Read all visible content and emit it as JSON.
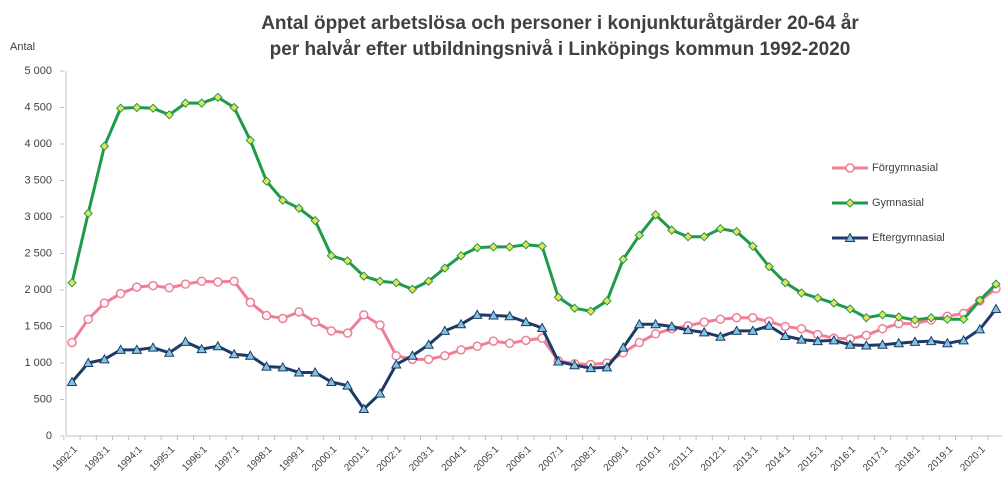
{
  "chart_data": {
    "type": "line",
    "title": [
      "Antal öppet arbetslösa och personer i konjunkturåtgärder 20-64 år",
      "per halvår efter utbildningsnivå i Linköpings kommun 1992-2020"
    ],
    "y_label": "Antal",
    "categories": [
      "1992:1",
      null,
      "1993:1",
      null,
      "1994:1",
      null,
      "1995:1",
      null,
      "1996:1",
      null,
      "1997:1",
      null,
      "1998:1",
      null,
      "1999:1",
      null,
      "2000:1",
      null,
      "2001:1",
      null,
      "2002:1",
      null,
      "2003:1",
      null,
      "2004:1",
      null,
      "2005:1",
      null,
      "2006:1",
      null,
      "2007:1",
      null,
      "2008:1",
      null,
      "2009:1",
      null,
      "2010:1",
      null,
      "2011:1",
      null,
      "2012:1",
      null,
      "2013:1",
      null,
      "2014:1",
      null,
      "2015:1",
      null,
      "2016:1",
      null,
      "2017:1",
      null,
      "2018:1",
      null,
      "2019:1",
      null,
      "2020:1",
      null
    ],
    "series": [
      {
        "name": "Förgymnasial",
        "color": "#ee7f96",
        "marker_fill": "#ffffff",
        "marker": "circle",
        "values": [
          1280,
          1600,
          1820,
          1950,
          2040,
          2060,
          2030,
          2080,
          2120,
          2110,
          2120,
          1830,
          1650,
          1610,
          1700,
          1560,
          1440,
          1410,
          1660,
          1520,
          1100,
          1050,
          1050,
          1100,
          1180,
          1230,
          1300,
          1270,
          1310,
          1340,
          1030,
          990,
          980,
          1000,
          1140,
          1280,
          1400,
          1470,
          1510,
          1560,
          1600,
          1620,
          1620,
          1570,
          1500,
          1470,
          1390,
          1340,
          1330,
          1380,
          1470,
          1540,
          1540,
          1590,
          1640,
          1680,
          1850,
          2020
        ]
      },
      {
        "name": "Gymnasial",
        "color": "#1f9a4a",
        "marker_fill": "#e8e05a",
        "marker": "diamond",
        "values": [
          2100,
          3050,
          3970,
          4490,
          4500,
          4490,
          4400,
          4560,
          4560,
          4640,
          4500,
          4050,
          3490,
          3230,
          3120,
          2950,
          2470,
          2400,
          2190,
          2120,
          2100,
          2010,
          2120,
          2300,
          2470,
          2580,
          2590,
          2590,
          2620,
          2600,
          1900,
          1750,
          1710,
          1850,
          2420,
          2750,
          3030,
          2820,
          2730,
          2730,
          2840,
          2800,
          2600,
          2320,
          2100,
          1960,
          1890,
          1820,
          1740,
          1620,
          1660,
          1630,
          1590,
          1620,
          1600,
          1600,
          1860,
          2080
        ]
      },
      {
        "name": "Eftergymnasial",
        "color": "#1f3a66",
        "marker_fill": "#7fc4e0",
        "marker": "triangle",
        "values": [
          740,
          1000,
          1050,
          1180,
          1180,
          1210,
          1140,
          1290,
          1190,
          1230,
          1120,
          1100,
          950,
          940,
          870,
          870,
          740,
          690,
          370,
          580,
          980,
          1100,
          1250,
          1440,
          1530,
          1660,
          1650,
          1640,
          1560,
          1480,
          1020,
          970,
          930,
          940,
          1210,
          1530,
          1530,
          1500,
          1450,
          1420,
          1360,
          1440,
          1440,
          1510,
          1370,
          1320,
          1300,
          1310,
          1250,
          1240,
          1250,
          1270,
          1290,
          1300,
          1270,
          1310,
          1460,
          1740
        ]
      }
    ],
    "ylim": [
      0,
      5000
    ],
    "yticks": [
      0,
      500,
      {
        "value": 1000,
        "label": "1 000"
      },
      {
        "value": 1500,
        "label": "1 500"
      },
      {
        "value": 2000,
        "label": "2 000"
      },
      {
        "value": 2500,
        "label": "2 500"
      },
      {
        "value": 3000,
        "label": "3 000"
      },
      {
        "value": 3500,
        "label": "3 500"
      },
      {
        "value": 4000,
        "label": "4 000"
      },
      {
        "value": 4500,
        "label": "4 500"
      },
      {
        "value": 5000,
        "label": "5 000"
      }
    ],
    "legend": "right"
  }
}
